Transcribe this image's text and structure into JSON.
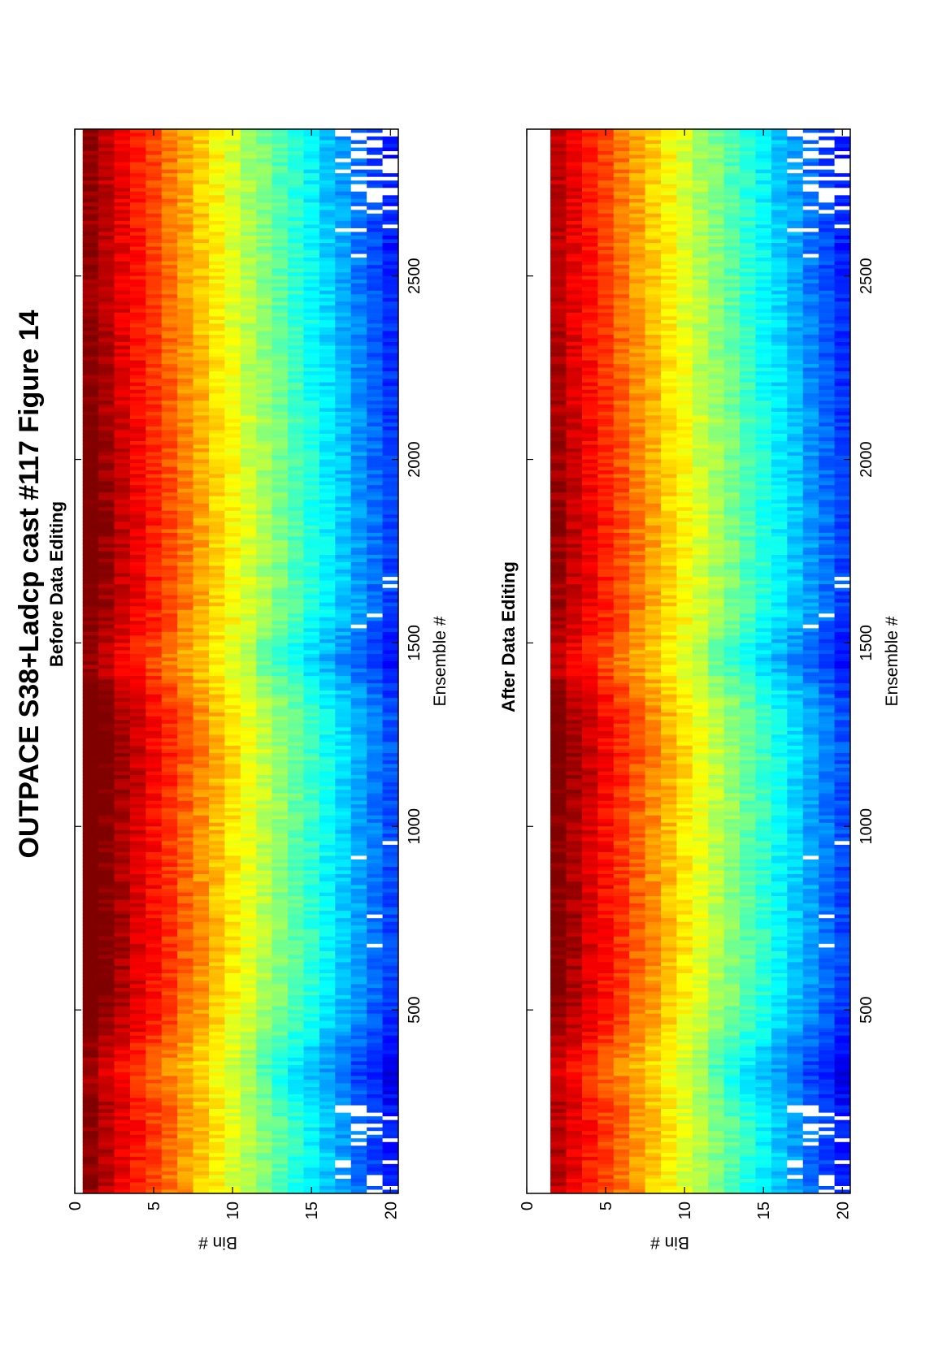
{
  "figure": {
    "title": "OUTPACE S38+Ladcp cast #117  Figure 14"
  },
  "chart_data": [
    {
      "type": "heatmap",
      "title": "Before Data Editing",
      "xlabel": "Ensemble #",
      "ylabel": "Bin #",
      "xlim": [
        0,
        2900
      ],
      "ylim": [
        0,
        20.5
      ],
      "x_ticks": [
        500,
        1000,
        1500,
        2000,
        2500
      ],
      "x_tick_labels": [
        "500",
        "1000",
        "1500",
        "2000",
        "2500"
      ],
      "y_ticks": [
        0,
        5,
        10,
        15,
        20
      ],
      "y_tick_labels": [
        "0",
        "5",
        "10",
        "15",
        "20"
      ],
      "y_reversed": true,
      "colormap": "jet",
      "bins": 20,
      "edited": false
    },
    {
      "type": "heatmap",
      "title": "After Data Editing",
      "xlabel": "Ensemble #",
      "ylabel": "Bin #",
      "xlim": [
        0,
        2900
      ],
      "ylim": [
        0,
        20.5
      ],
      "x_ticks": [
        500,
        1000,
        1500,
        2000,
        2500
      ],
      "x_tick_labels": [
        "500",
        "1000",
        "1500",
        "2000",
        "2500"
      ],
      "y_ticks": [
        0,
        5,
        10,
        15,
        20
      ],
      "y_tick_labels": [
        "0",
        "5",
        "10",
        "15",
        "20"
      ],
      "y_reversed": true,
      "colormap": "jet",
      "bins": 20,
      "edited": true
    }
  ]
}
